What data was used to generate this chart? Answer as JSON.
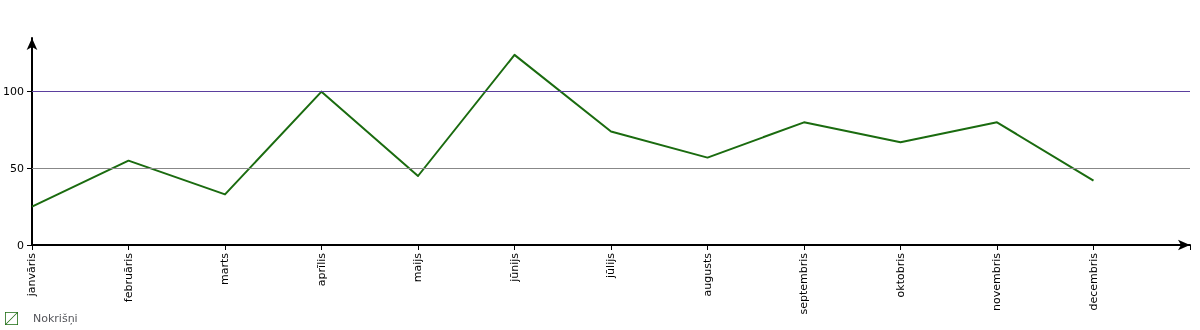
{
  "chart_data": {
    "type": "line",
    "categories": [
      "janvāris",
      "februāris",
      "marts",
      "aprīlis",
      "maijs",
      "jūnijs",
      "jūlijs",
      "augusts",
      "septembris",
      "oktobris",
      "novembris",
      "decembris"
    ],
    "series": [
      {
        "name": "Nokrišņi",
        "color": "#1a6b0f",
        "values": [
          25,
          55,
          33,
          100,
          45,
          124,
          74,
          57,
          80,
          67,
          80,
          42
        ]
      }
    ],
    "ylim": [
      0,
      135
    ],
    "yticks": [
      0,
      50,
      100
    ],
    "legend": "bottom left",
    "marker": "none",
    "line_style": "solid",
    "ref_lines": [
      {
        "axis": "y",
        "value": 50,
        "color": "#888888"
      },
      {
        "axis": "y",
        "value": 100,
        "color": "#5b3f9e"
      }
    ]
  }
}
